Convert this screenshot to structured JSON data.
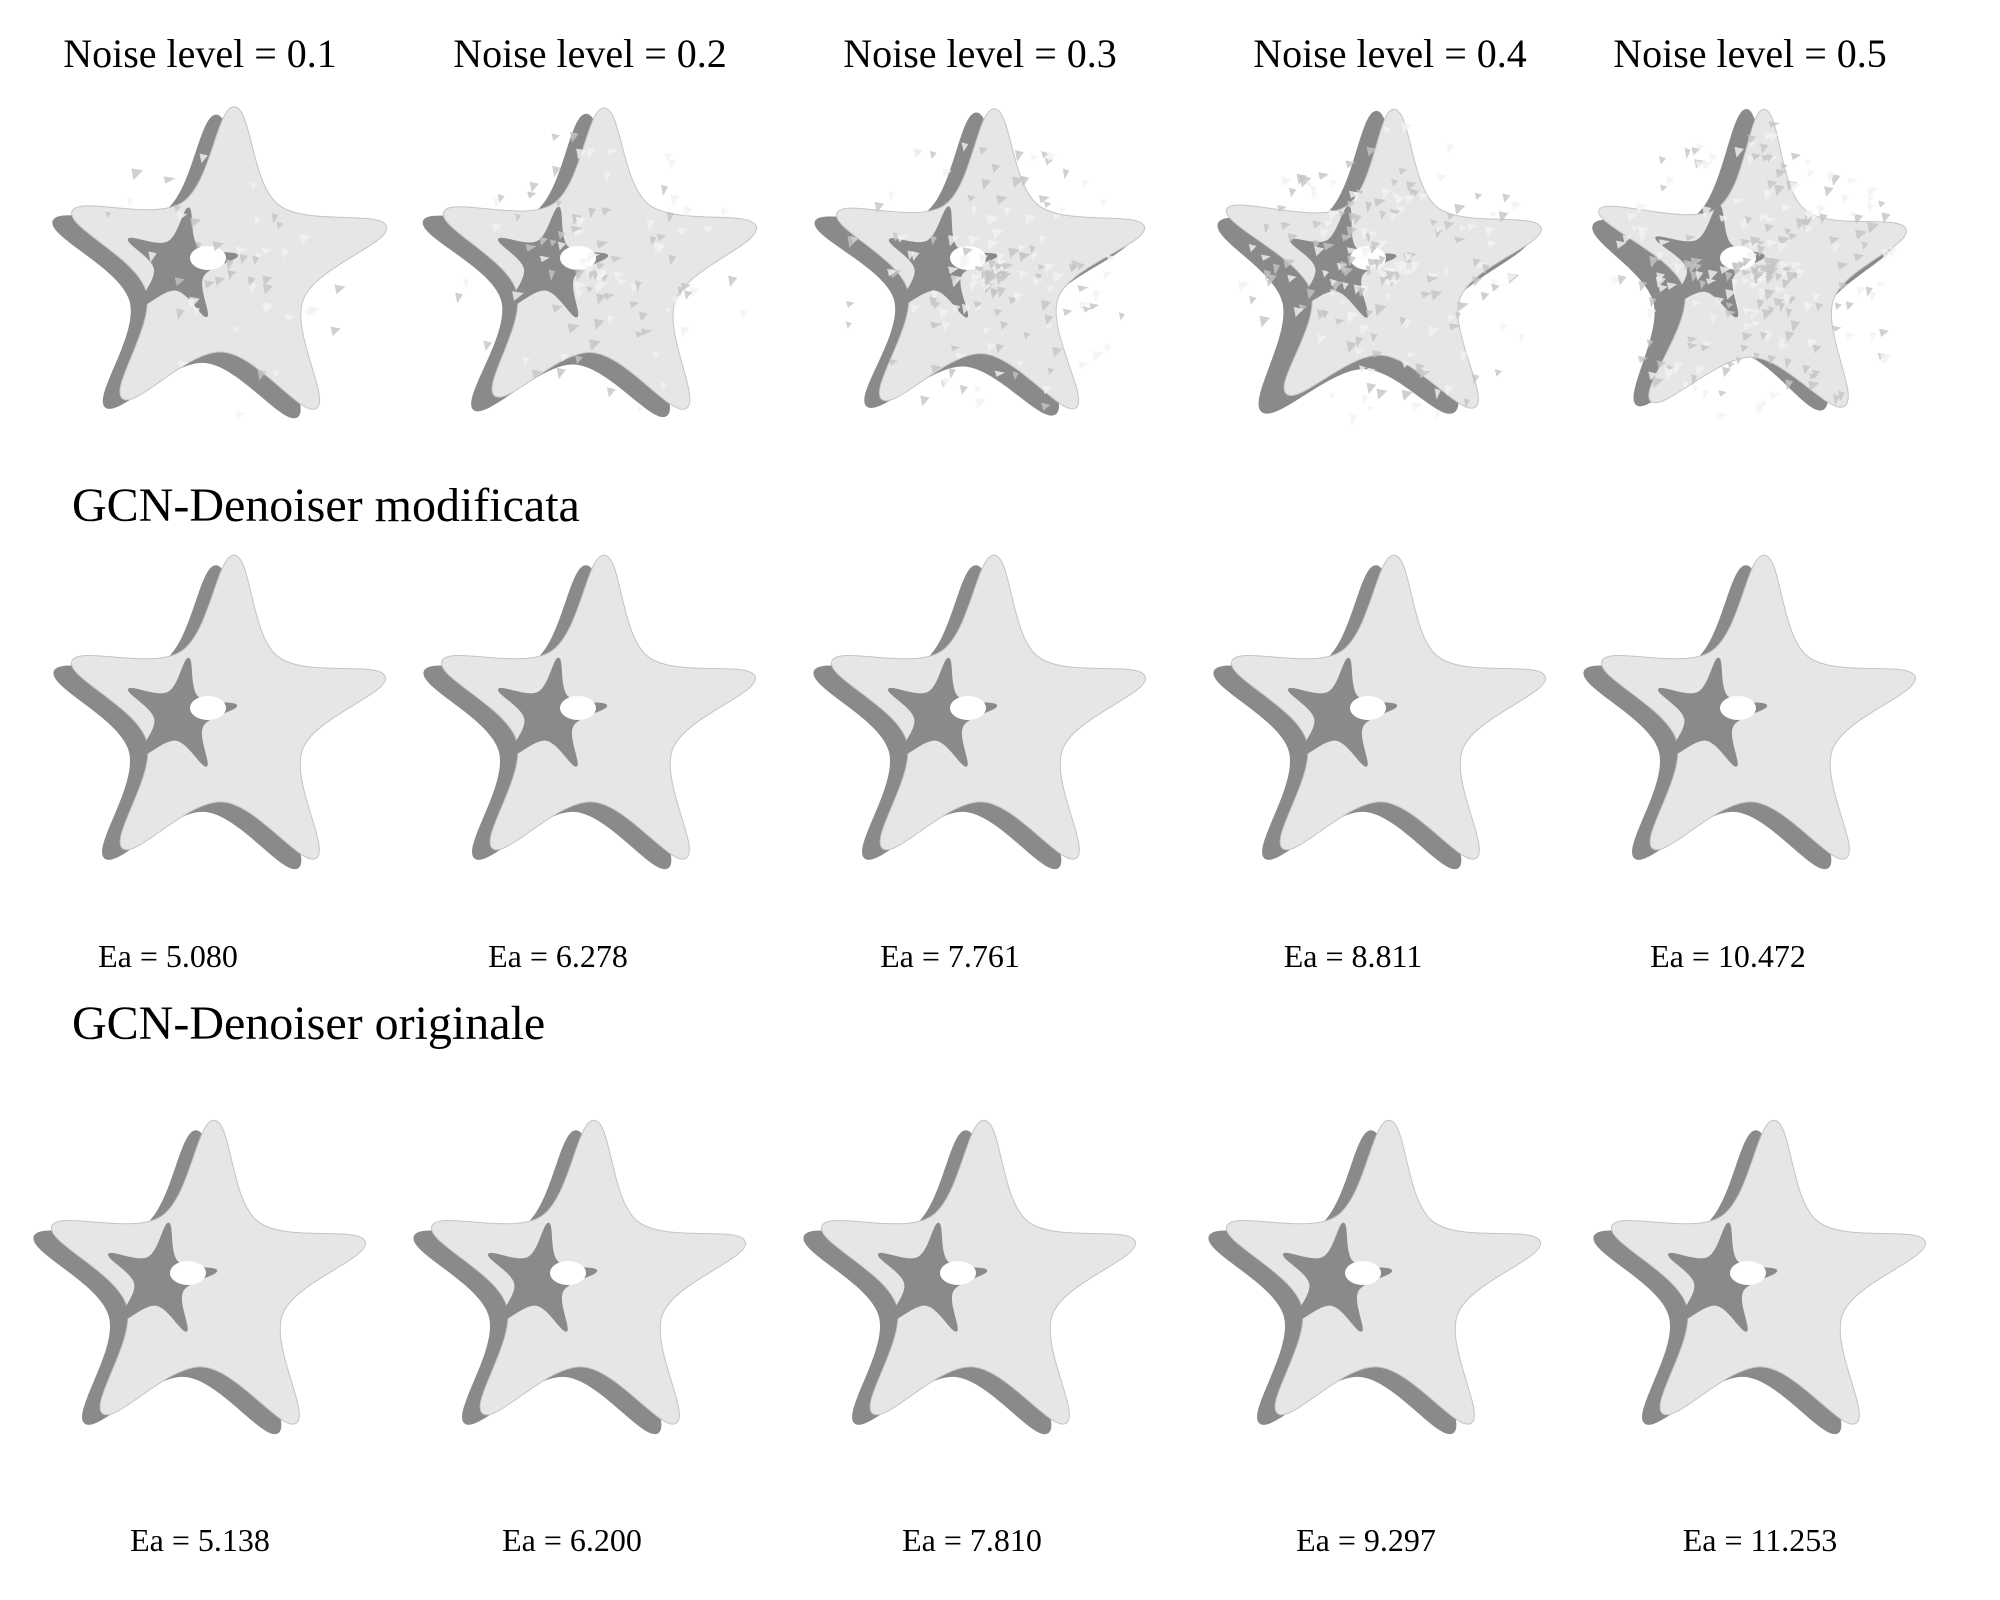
{
  "noise_levels": [
    "Noise level = 0.1",
    "Noise level = 0.2",
    "Noise level = 0.3",
    "Noise level = 0.4",
    "Noise level = 0.5"
  ],
  "sections": {
    "modified_title": "GCN-Denoiser modificata",
    "original_title": "GCN-Denoiser originale"
  },
  "modified_errors": [
    "Ea = 5.080",
    "Ea = 6.278",
    "Ea = 7.761",
    "Ea = 8.811",
    "Ea = 10.472"
  ],
  "original_errors": [
    "Ea = 5.138",
    "Ea = 6.200",
    "Ea = 7.810",
    "Ea = 9.297",
    "Ea = 11.253"
  ],
  "colors": {
    "mesh_light": "#e6e6e6",
    "mesh_mid": "#c4c4c4",
    "mesh_dark": "#8a8a8a"
  }
}
